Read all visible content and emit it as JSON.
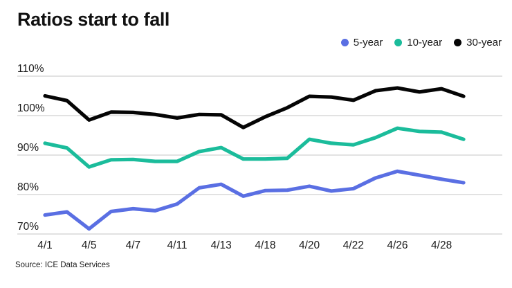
{
  "source": "Source: ICE Data Services",
  "colors": {
    "five_year": "#5A6FE3",
    "ten_year": "#1BBC9B",
    "thirty_year": "#050505",
    "gridline": "#C6C6C6",
    "text": "#1A1A1A"
  },
  "chart_data": {
    "type": "line",
    "title": "Ratios start to fall",
    "xlabel": "",
    "ylabel": "",
    "ylim": [
      70,
      110
    ],
    "grid": "horizontal",
    "legend_position": "top-right",
    "categories": [
      "4/1",
      "4/4",
      "4/5",
      "4/6",
      "4/7",
      "4/8",
      "4/11",
      "4/12",
      "4/13",
      "4/14",
      "4/18",
      "4/19",
      "4/20",
      "4/21",
      "4/22",
      "4/25",
      "4/26",
      "4/27",
      "4/28",
      "4/29"
    ],
    "x_ticks": [
      {
        "index": 0,
        "label": "4/1"
      },
      {
        "index": 2,
        "label": "4/5"
      },
      {
        "index": 4,
        "label": "4/7"
      },
      {
        "index": 6,
        "label": "4/11"
      },
      {
        "index": 8,
        "label": "4/13"
      },
      {
        "index": 10,
        "label": "4/18"
      },
      {
        "index": 12,
        "label": "4/20"
      },
      {
        "index": 14,
        "label": "4/22"
      },
      {
        "index": 16,
        "label": "4/26"
      },
      {
        "index": 18,
        "label": "4/28"
      }
    ],
    "y_ticks": [
      {
        "value": 110,
        "label": "110%"
      },
      {
        "value": 100,
        "label": "100%"
      },
      {
        "value": 90,
        "label": "90%"
      },
      {
        "value": 80,
        "label": "80%"
      },
      {
        "value": 70,
        "label": "70%"
      }
    ],
    "series": [
      {
        "name": "5-year",
        "color": "#5A6FE3",
        "values": [
          74.8,
          75.6,
          71.3,
          75.7,
          76.4,
          75.9,
          77.6,
          81.7,
          82.6,
          79.6,
          81.0,
          81.1,
          82.1,
          80.9,
          81.5,
          84.2,
          85.9,
          84.9,
          83.9,
          83.0
        ]
      },
      {
        "name": "10-year",
        "color": "#1BBC9B",
        "values": [
          93.0,
          91.8,
          87.0,
          88.8,
          88.9,
          88.4,
          88.4,
          90.9,
          91.9,
          89.0,
          89.0,
          89.2,
          94.0,
          93.0,
          92.6,
          94.4,
          96.8,
          96.0,
          95.8,
          94.0
        ]
      },
      {
        "name": "30-year",
        "color": "#050505",
        "values": [
          105.0,
          103.8,
          98.9,
          100.9,
          100.8,
          100.3,
          99.4,
          100.3,
          100.2,
          97.0,
          99.7,
          102.0,
          104.9,
          104.7,
          103.9,
          106.3,
          107.0,
          106.0,
          106.8,
          104.9
        ]
      }
    ]
  }
}
